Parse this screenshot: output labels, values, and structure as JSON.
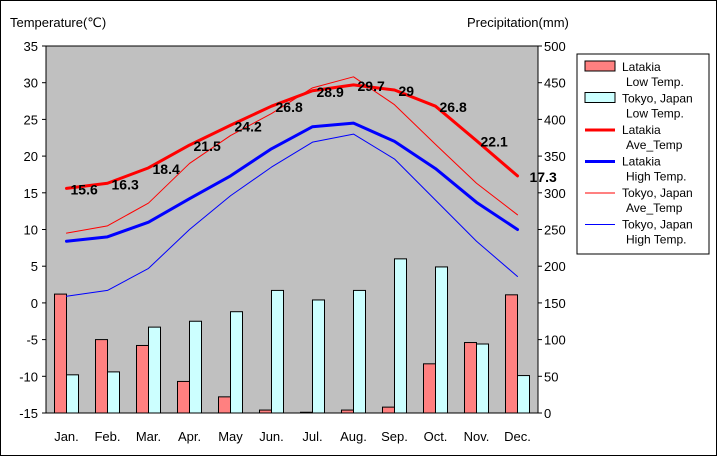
{
  "chart_data": {
    "type": "combo-bar-line",
    "left_axis_title": "Temperature(℃)",
    "right_axis_title": "Precipitation(mm)",
    "left_ylim": [
      -15,
      35
    ],
    "left_ticks": [
      35,
      30,
      25,
      20,
      15,
      10,
      5,
      0,
      -5,
      -10,
      -15
    ],
    "right_ylim": [
      0,
      500
    ],
    "right_ticks": [
      500,
      450,
      400,
      350,
      300,
      250,
      200,
      150,
      100,
      50,
      0
    ],
    "categories": [
      "Jan.",
      "Feb.",
      "Mar.",
      "Apr.",
      "May",
      "Jun.",
      "Jul.",
      "Aug.",
      "Sep.",
      "Oct.",
      "Nov.",
      "Dec."
    ],
    "grid": false,
    "legend_position": "right",
    "bar_series": [
      {
        "legend": [
          "Latakia",
          "Low Temp."
        ],
        "color": "#ff8080",
        "values": [
          1.2,
          -5,
          -5.8,
          -10.7,
          -12.8,
          -14.6,
          -14.9,
          -14.6,
          -14.2,
          -8.3,
          -5.4,
          1.1
        ]
      },
      {
        "legend": [
          "Tokyo, Japan",
          "Low Temp."
        ],
        "color": "#ccffff",
        "values": [
          -9.8,
          -9.4,
          -3.3,
          -2.5,
          -1.2,
          1.7,
          0.4,
          1.7,
          6.0,
          4.9,
          -5.6,
          -9.9
        ]
      }
    ],
    "line_series": [
      {
        "legend": [
          "Latakia",
          "Ave_Temp"
        ],
        "color": "#ff0000",
        "width": 3,
        "values": [
          15.6,
          16.3,
          18.4,
          21.5,
          24.2,
          26.8,
          28.9,
          29.7,
          29,
          26.8,
          22.1,
          17.3
        ],
        "labels": [
          "15.6",
          "16.3",
          "18.4",
          "21.5",
          "24.2",
          "26.8",
          "28.9",
          "29.7",
          "29",
          "26.8",
          "22.1",
          "17.3"
        ]
      },
      {
        "legend": [
          "Latakia",
          "High Temp."
        ],
        "color": "#0000ff",
        "width": 3,
        "values": [
          8.4,
          9.0,
          11.0,
          14.2,
          17.3,
          21.0,
          24.0,
          24.5,
          22.0,
          18.3,
          13.7,
          10.0
        ]
      },
      {
        "legend": [
          "Tokyo, Japan",
          "Ave_Temp"
        ],
        "color": "#ff0000",
        "width": 1,
        "values": [
          9.5,
          10.5,
          13.6,
          19.0,
          22.8,
          25.8,
          29.3,
          30.8,
          27.0,
          21.6,
          16.3,
          12.0
        ]
      },
      {
        "legend": [
          "Tokyo, Japan",
          "High Temp."
        ],
        "color": "#0000ff",
        "width": 1,
        "values": [
          0.9,
          1.7,
          4.7,
          10.0,
          14.6,
          18.5,
          21.9,
          23.0,
          19.6,
          14.0,
          8.4,
          3.6
        ]
      }
    ]
  }
}
